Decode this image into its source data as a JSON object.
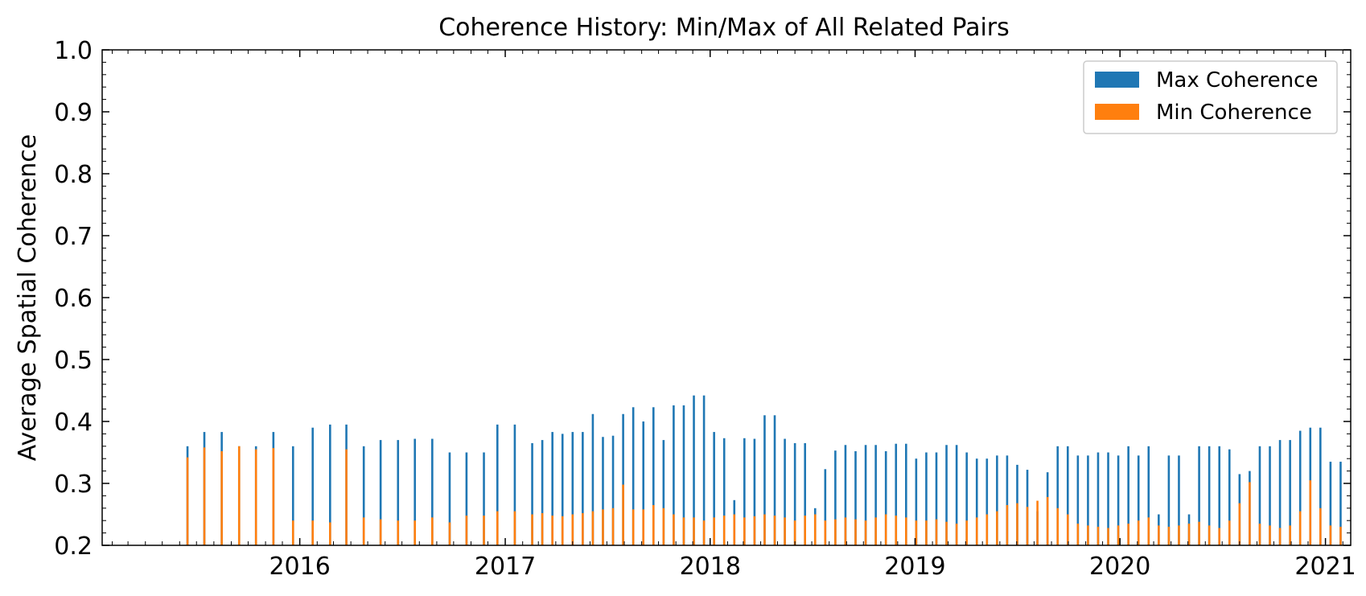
{
  "chart_data": {
    "type": "bar",
    "title": "Coherence History: Min/Max of All Related Pairs",
    "xlabel": "",
    "ylabel": "Average Spatial Coherence",
    "ylim": [
      0.2,
      1.0
    ],
    "xlim": [
      "2015-01-14",
      "2021-02-15"
    ],
    "yticks": [
      "0.2",
      "0.3",
      "0.4",
      "0.5",
      "0.6",
      "0.7",
      "0.8",
      "0.9",
      "1.0"
    ],
    "xticks": [
      "2016",
      "2017",
      "2018",
      "2019",
      "2020",
      "2021"
    ],
    "grid": false,
    "legend_position": "top-right",
    "series": [
      {
        "name": "Max Coherence",
        "color": "#1f77b4",
        "points": [
          [
            "2015-06-15",
            0.36
          ],
          [
            "2015-07-15",
            0.383
          ],
          [
            "2015-08-15",
            0.383
          ],
          [
            "2015-09-15",
            0.36
          ],
          [
            "2015-10-15",
            0.36
          ],
          [
            "2015-11-15",
            0.383
          ],
          [
            "2015-12-20",
            0.36
          ],
          [
            "2016-01-24",
            0.39
          ],
          [
            "2016-02-24",
            0.395
          ],
          [
            "2016-03-24",
            0.395
          ],
          [
            "2016-04-24",
            0.36
          ],
          [
            "2016-05-24",
            0.37
          ],
          [
            "2016-06-24",
            0.37
          ],
          [
            "2016-07-24",
            0.372
          ],
          [
            "2016-08-24",
            0.372
          ],
          [
            "2016-09-24",
            0.35
          ],
          [
            "2016-10-24",
            0.35
          ],
          [
            "2016-11-24",
            0.35
          ],
          [
            "2016-12-18",
            0.395
          ],
          [
            "2017-01-18",
            0.395
          ],
          [
            "2017-02-18",
            0.365
          ],
          [
            "2017-03-08",
            0.37
          ],
          [
            "2017-03-26",
            0.383
          ],
          [
            "2017-04-13",
            0.38
          ],
          [
            "2017-05-01",
            0.383
          ],
          [
            "2017-05-19",
            0.383
          ],
          [
            "2017-06-06",
            0.412
          ],
          [
            "2017-06-24",
            0.375
          ],
          [
            "2017-07-12",
            0.377
          ],
          [
            "2017-07-30",
            0.412
          ],
          [
            "2017-08-17",
            0.423
          ],
          [
            "2017-09-04",
            0.4
          ],
          [
            "2017-09-22",
            0.423
          ],
          [
            "2017-10-10",
            0.37
          ],
          [
            "2017-10-28",
            0.426
          ],
          [
            "2017-11-15",
            0.426
          ],
          [
            "2017-12-03",
            0.442
          ],
          [
            "2017-12-21",
            0.442
          ],
          [
            "2018-01-08",
            0.383
          ],
          [
            "2018-01-26",
            0.373
          ],
          [
            "2018-02-13",
            0.273
          ],
          [
            "2018-03-03",
            0.373
          ],
          [
            "2018-03-21",
            0.372
          ],
          [
            "2018-04-08",
            0.41
          ],
          [
            "2018-04-26",
            0.41
          ],
          [
            "2018-05-14",
            0.372
          ],
          [
            "2018-06-01",
            0.365
          ],
          [
            "2018-06-19",
            0.365
          ],
          [
            "2018-07-07",
            0.26
          ],
          [
            "2018-07-25",
            0.323
          ],
          [
            "2018-08-12",
            0.353
          ],
          [
            "2018-08-30",
            0.362
          ],
          [
            "2018-09-17",
            0.352
          ],
          [
            "2018-10-05",
            0.362
          ],
          [
            "2018-10-23",
            0.362
          ],
          [
            "2018-11-10",
            0.352
          ],
          [
            "2018-11-28",
            0.364
          ],
          [
            "2018-12-16",
            0.364
          ],
          [
            "2019-01-03",
            0.34
          ],
          [
            "2019-01-21",
            0.35
          ],
          [
            "2019-02-08",
            0.35
          ],
          [
            "2019-02-26",
            0.362
          ],
          [
            "2019-03-16",
            0.362
          ],
          [
            "2019-04-03",
            0.35
          ],
          [
            "2019-04-21",
            0.34
          ],
          [
            "2019-05-09",
            0.34
          ],
          [
            "2019-05-27",
            0.345
          ],
          [
            "2019-06-14",
            0.345
          ],
          [
            "2019-07-02",
            0.33
          ],
          [
            "2019-07-20",
            0.322
          ],
          [
            "2019-08-07",
            0.255
          ],
          [
            "2019-08-25",
            0.318
          ],
          [
            "2019-09-12",
            0.36
          ],
          [
            "2019-09-30",
            0.36
          ],
          [
            "2019-10-18",
            0.345
          ],
          [
            "2019-11-05",
            0.345
          ],
          [
            "2019-11-23",
            0.35
          ],
          [
            "2019-12-11",
            0.35
          ],
          [
            "2019-12-29",
            0.345
          ],
          [
            "2020-01-16",
            0.36
          ],
          [
            "2020-02-03",
            0.345
          ],
          [
            "2020-02-21",
            0.36
          ],
          [
            "2020-03-10",
            0.25
          ],
          [
            "2020-03-28",
            0.345
          ],
          [
            "2020-04-15",
            0.345
          ],
          [
            "2020-05-03",
            0.25
          ],
          [
            "2020-05-21",
            0.36
          ],
          [
            "2020-06-08",
            0.36
          ],
          [
            "2020-06-26",
            0.36
          ],
          [
            "2020-07-14",
            0.355
          ],
          [
            "2020-08-01",
            0.315
          ],
          [
            "2020-08-19",
            0.32
          ],
          [
            "2020-09-06",
            0.36
          ],
          [
            "2020-09-24",
            0.36
          ],
          [
            "2020-10-12",
            0.37
          ],
          [
            "2020-10-30",
            0.37
          ],
          [
            "2020-11-17",
            0.385
          ],
          [
            "2020-12-05",
            0.39
          ],
          [
            "2020-12-23",
            0.39
          ],
          [
            "2021-01-10",
            0.335
          ],
          [
            "2021-01-28",
            0.335
          ]
        ]
      },
      {
        "name": "Min Coherence",
        "color": "#ff7f0e",
        "points": [
          [
            "2015-06-15",
            0.342
          ],
          [
            "2015-07-15",
            0.358
          ],
          [
            "2015-08-15",
            0.352
          ],
          [
            "2015-09-15",
            0.36
          ],
          [
            "2015-10-15",
            0.355
          ],
          [
            "2015-11-15",
            0.357
          ],
          [
            "2015-12-20",
            0.24
          ],
          [
            "2016-01-24",
            0.24
          ],
          [
            "2016-02-24",
            0.237
          ],
          [
            "2016-03-24",
            0.355
          ],
          [
            "2016-04-24",
            0.245
          ],
          [
            "2016-05-24",
            0.242
          ],
          [
            "2016-06-24",
            0.24
          ],
          [
            "2016-07-24",
            0.24
          ],
          [
            "2016-08-24",
            0.245
          ],
          [
            "2016-09-24",
            0.237
          ],
          [
            "2016-10-24",
            0.248
          ],
          [
            "2016-11-24",
            0.248
          ],
          [
            "2016-12-18",
            0.255
          ],
          [
            "2017-01-18",
            0.255
          ],
          [
            "2017-02-18",
            0.25
          ],
          [
            "2017-03-08",
            0.252
          ],
          [
            "2017-03-26",
            0.248
          ],
          [
            "2017-04-13",
            0.247
          ],
          [
            "2017-05-01",
            0.25
          ],
          [
            "2017-05-19",
            0.252
          ],
          [
            "2017-06-06",
            0.255
          ],
          [
            "2017-06-24",
            0.258
          ],
          [
            "2017-07-12",
            0.26
          ],
          [
            "2017-07-30",
            0.298
          ],
          [
            "2017-08-17",
            0.258
          ],
          [
            "2017-09-04",
            0.258
          ],
          [
            "2017-09-22",
            0.265
          ],
          [
            "2017-10-10",
            0.26
          ],
          [
            "2017-10-28",
            0.25
          ],
          [
            "2017-11-15",
            0.245
          ],
          [
            "2017-12-03",
            0.245
          ],
          [
            "2017-12-21",
            0.24
          ],
          [
            "2018-01-08",
            0.245
          ],
          [
            "2018-01-26",
            0.248
          ],
          [
            "2018-02-13",
            0.25
          ],
          [
            "2018-03-03",
            0.245
          ],
          [
            "2018-03-21",
            0.247
          ],
          [
            "2018-04-08",
            0.25
          ],
          [
            "2018-04-26",
            0.248
          ],
          [
            "2018-05-14",
            0.245
          ],
          [
            "2018-06-01",
            0.24
          ],
          [
            "2018-06-19",
            0.248
          ],
          [
            "2018-07-07",
            0.25
          ],
          [
            "2018-07-25",
            0.24
          ],
          [
            "2018-08-12",
            0.242
          ],
          [
            "2018-08-30",
            0.245
          ],
          [
            "2018-09-17",
            0.242
          ],
          [
            "2018-10-05",
            0.24
          ],
          [
            "2018-10-23",
            0.245
          ],
          [
            "2018-11-10",
            0.25
          ],
          [
            "2018-11-28",
            0.248
          ],
          [
            "2018-12-16",
            0.245
          ],
          [
            "2019-01-03",
            0.24
          ],
          [
            "2019-01-21",
            0.24
          ],
          [
            "2019-02-08",
            0.242
          ],
          [
            "2019-02-26",
            0.238
          ],
          [
            "2019-03-16",
            0.235
          ],
          [
            "2019-04-03",
            0.24
          ],
          [
            "2019-04-21",
            0.245
          ],
          [
            "2019-05-09",
            0.25
          ],
          [
            "2019-05-27",
            0.255
          ],
          [
            "2019-06-14",
            0.265
          ],
          [
            "2019-07-02",
            0.268
          ],
          [
            "2019-07-20",
            0.262
          ],
          [
            "2019-08-07",
            0.272
          ],
          [
            "2019-08-25",
            0.278
          ],
          [
            "2019-09-12",
            0.26
          ],
          [
            "2019-09-30",
            0.25
          ],
          [
            "2019-10-18",
            0.235
          ],
          [
            "2019-11-05",
            0.232
          ],
          [
            "2019-11-23",
            0.23
          ],
          [
            "2019-12-11",
            0.228
          ],
          [
            "2019-12-29",
            0.232
          ],
          [
            "2020-01-16",
            0.235
          ],
          [
            "2020-02-03",
            0.24
          ],
          [
            "2020-02-21",
            0.245
          ],
          [
            "2020-03-10",
            0.232
          ],
          [
            "2020-03-28",
            0.23
          ],
          [
            "2020-04-15",
            0.232
          ],
          [
            "2020-05-03",
            0.235
          ],
          [
            "2020-05-21",
            0.238
          ],
          [
            "2020-06-08",
            0.232
          ],
          [
            "2020-06-26",
            0.228
          ],
          [
            "2020-07-14",
            0.24
          ],
          [
            "2020-08-01",
            0.268
          ],
          [
            "2020-08-19",
            0.302
          ],
          [
            "2020-09-06",
            0.235
          ],
          [
            "2020-09-24",
            0.232
          ],
          [
            "2020-10-12",
            0.228
          ],
          [
            "2020-10-30",
            0.232
          ],
          [
            "2020-11-17",
            0.255
          ],
          [
            "2020-12-05",
            0.305
          ],
          [
            "2020-12-23",
            0.26
          ],
          [
            "2021-01-10",
            0.232
          ],
          [
            "2021-01-28",
            0.23
          ]
        ]
      }
    ]
  }
}
